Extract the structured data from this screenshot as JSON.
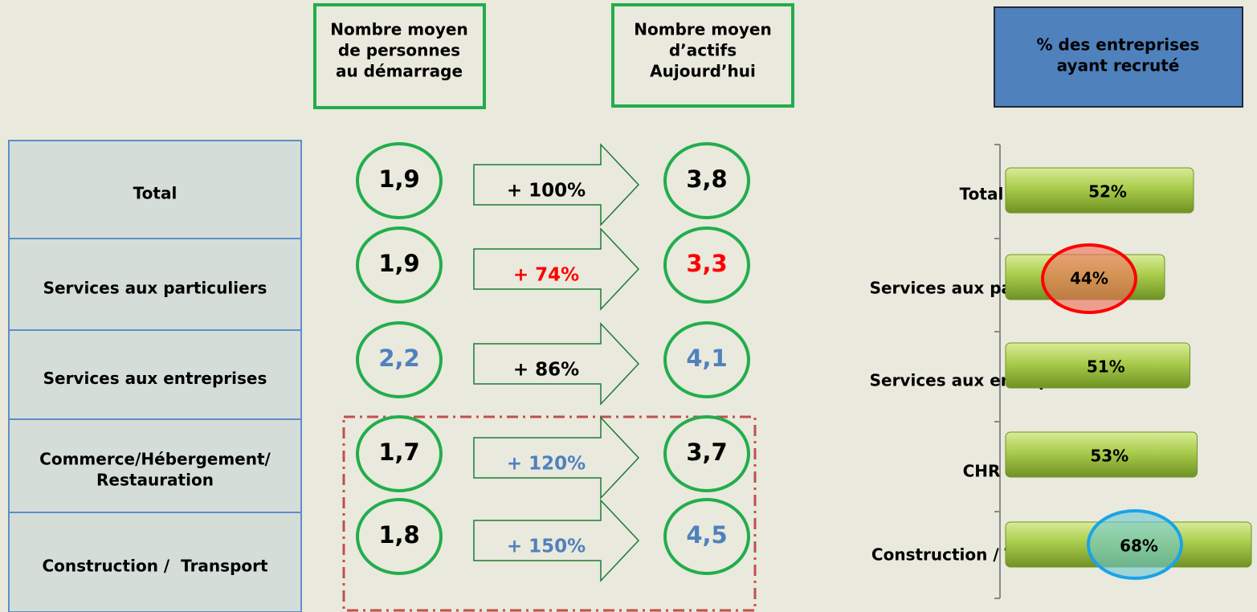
{
  "headers": {
    "start": [
      "Nombre moyen",
      "de personnes",
      "au démarrage"
    ],
    "today": [
      "Nombre moyen",
      "d’actifs",
      "Aujourd’hui"
    ]
  },
  "rows": [
    {
      "label": [
        "Total"
      ],
      "start": "1,9",
      "growth": "+ 100%",
      "today": "3,8"
    },
    {
      "label": [
        "Services aux particuliers"
      ],
      "start": "1,9",
      "growth": "+ 74%",
      "today": "3,3"
    },
    {
      "label": [
        "Services aux entreprises"
      ],
      "start": "2,2",
      "growth": "+ 86%",
      "today": "4,1"
    },
    {
      "label": [
        "Commerce/Hébergement/",
        "Restauration"
      ],
      "start": "1,7",
      "growth": "+ 120%",
      "today": "3,7"
    },
    {
      "label": [
        "Construction /  Transport"
      ],
      "start": "1,8",
      "growth": "+ 150%",
      "today": "4,5"
    }
  ],
  "chart_data": {
    "type": "bar",
    "title": [
      "% des entreprises",
      "ayant recruté"
    ],
    "categories": [
      "Total",
      "Services aux particuliers",
      "Services aux entreprises",
      "CHR",
      "Construction / Transport"
    ],
    "values": [
      52,
      44,
      51,
      53,
      68
    ],
    "value_labels": [
      "52%",
      "44%",
      "51%",
      "53%",
      "68%"
    ]
  }
}
